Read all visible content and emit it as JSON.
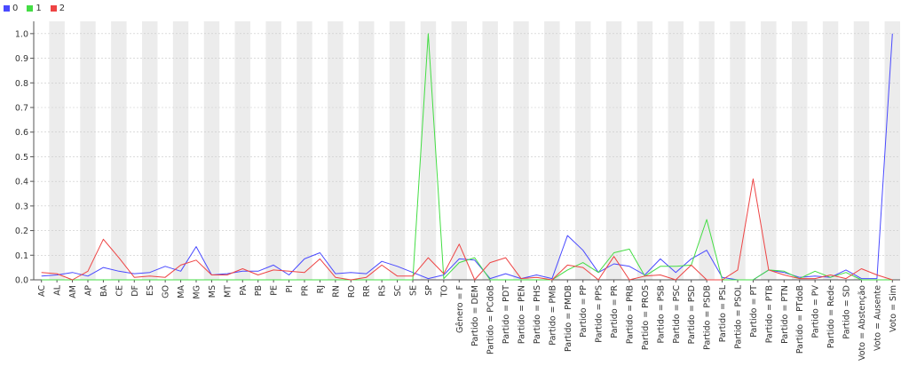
{
  "chart_data": {
    "type": "line",
    "title": "",
    "xlabel": "",
    "ylabel": "",
    "ylim": [
      0,
      1.05
    ],
    "yticks": [
      "0.0",
      "0.1",
      "0.2",
      "0.3",
      "0.4",
      "0.5",
      "0.6",
      "0.7",
      "0.8",
      "0.9",
      "1.0"
    ],
    "grid": true,
    "legend_position": "top-left",
    "categories": [
      "AC",
      "AL",
      "AM",
      "AP",
      "BA",
      "CE",
      "DF",
      "ES",
      "GO",
      "MA",
      "MG",
      "MS",
      "MT",
      "PA",
      "PB",
      "PE",
      "PI",
      "PR",
      "RJ",
      "RN",
      "RO",
      "RR",
      "RS",
      "SC",
      "SE",
      "SP",
      "TO",
      "Gênero = F",
      "Partido = DEM",
      "Partido = PCdoB",
      "Partido = PDT",
      "Partido = PEN",
      "Partido = PHS",
      "Partido = PMB",
      "Partido = PMDB",
      "Partido = PP",
      "Partido = PPS",
      "Partido = PR",
      "Partido = PRB",
      "Partido = PROS",
      "Partido = PSB",
      "Partido = PSC",
      "Partido = PSD",
      "Partido = PSDB",
      "Partido = PSL",
      "Partido = PSOL",
      "Partido = PT",
      "Partido = PTB",
      "Partido = PTN",
      "Partido = PTdoB",
      "Partido = PV",
      "Partido = Rede",
      "Partido = SD",
      "Voto = Abstenção",
      "Voto = Ausente",
      "Voto = Sim"
    ],
    "series": [
      {
        "name": "0",
        "color": "#4a4aff",
        "values": [
          0.015,
          0.02,
          0.03,
          0.015,
          0.05,
          0.035,
          0.025,
          0.03,
          0.055,
          0.035,
          0.135,
          0.02,
          0.025,
          0.035,
          0.035,
          0.06,
          0.02,
          0.085,
          0.11,
          0.025,
          0.03,
          0.025,
          0.075,
          0.055,
          0.03,
          0.005,
          0.02,
          0.085,
          0.08,
          0.005,
          0.025,
          0.005,
          0.02,
          0.005,
          0.18,
          0.12,
          0.03,
          0.065,
          0.055,
          0.02,
          0.085,
          0.03,
          0.085,
          0.12,
          0.01,
          0.0,
          0.0,
          0.04,
          0.03,
          0.01,
          0.015,
          0.01,
          0.04,
          0.005,
          0.005,
          1.0
        ]
      },
      {
        "name": "1",
        "color": "#44dd44",
        "values": [
          0.0,
          0.0,
          0.0,
          0.0,
          0.0,
          0.0,
          0.0,
          0.0,
          0.0,
          0.0,
          0.0,
          0.0,
          0.0,
          0.0,
          0.0,
          0.0,
          0.0,
          0.0,
          0.0,
          0.0,
          0.0,
          0.0,
          0.0,
          0.0,
          0.0,
          1.0,
          0.005,
          0.07,
          0.09,
          0.0,
          0.0,
          0.0,
          0.0,
          0.0,
          0.04,
          0.07,
          0.03,
          0.11,
          0.125,
          0.015,
          0.055,
          0.055,
          0.06,
          0.245,
          0.0,
          0.0,
          0.0,
          0.04,
          0.035,
          0.005,
          0.035,
          0.01,
          0.03,
          0.0,
          0.0,
          0.0
        ]
      },
      {
        "name": "2",
        "color": "#ee4444",
        "values": [
          0.03,
          0.025,
          0.0,
          0.035,
          0.165,
          0.09,
          0.01,
          0.015,
          0.01,
          0.06,
          0.08,
          0.02,
          0.02,
          0.045,
          0.02,
          0.04,
          0.035,
          0.03,
          0.085,
          0.01,
          0.0,
          0.01,
          0.06,
          0.015,
          0.015,
          0.09,
          0.025,
          0.145,
          0.0,
          0.07,
          0.09,
          0.005,
          0.01,
          0.0,
          0.06,
          0.05,
          0.0,
          0.095,
          0.0,
          0.015,
          0.02,
          0.0,
          0.06,
          0.0,
          0.0,
          0.04,
          0.41,
          0.04,
          0.02,
          0.005,
          0.005,
          0.02,
          0.005,
          0.045,
          0.02,
          0.0
        ]
      }
    ]
  }
}
